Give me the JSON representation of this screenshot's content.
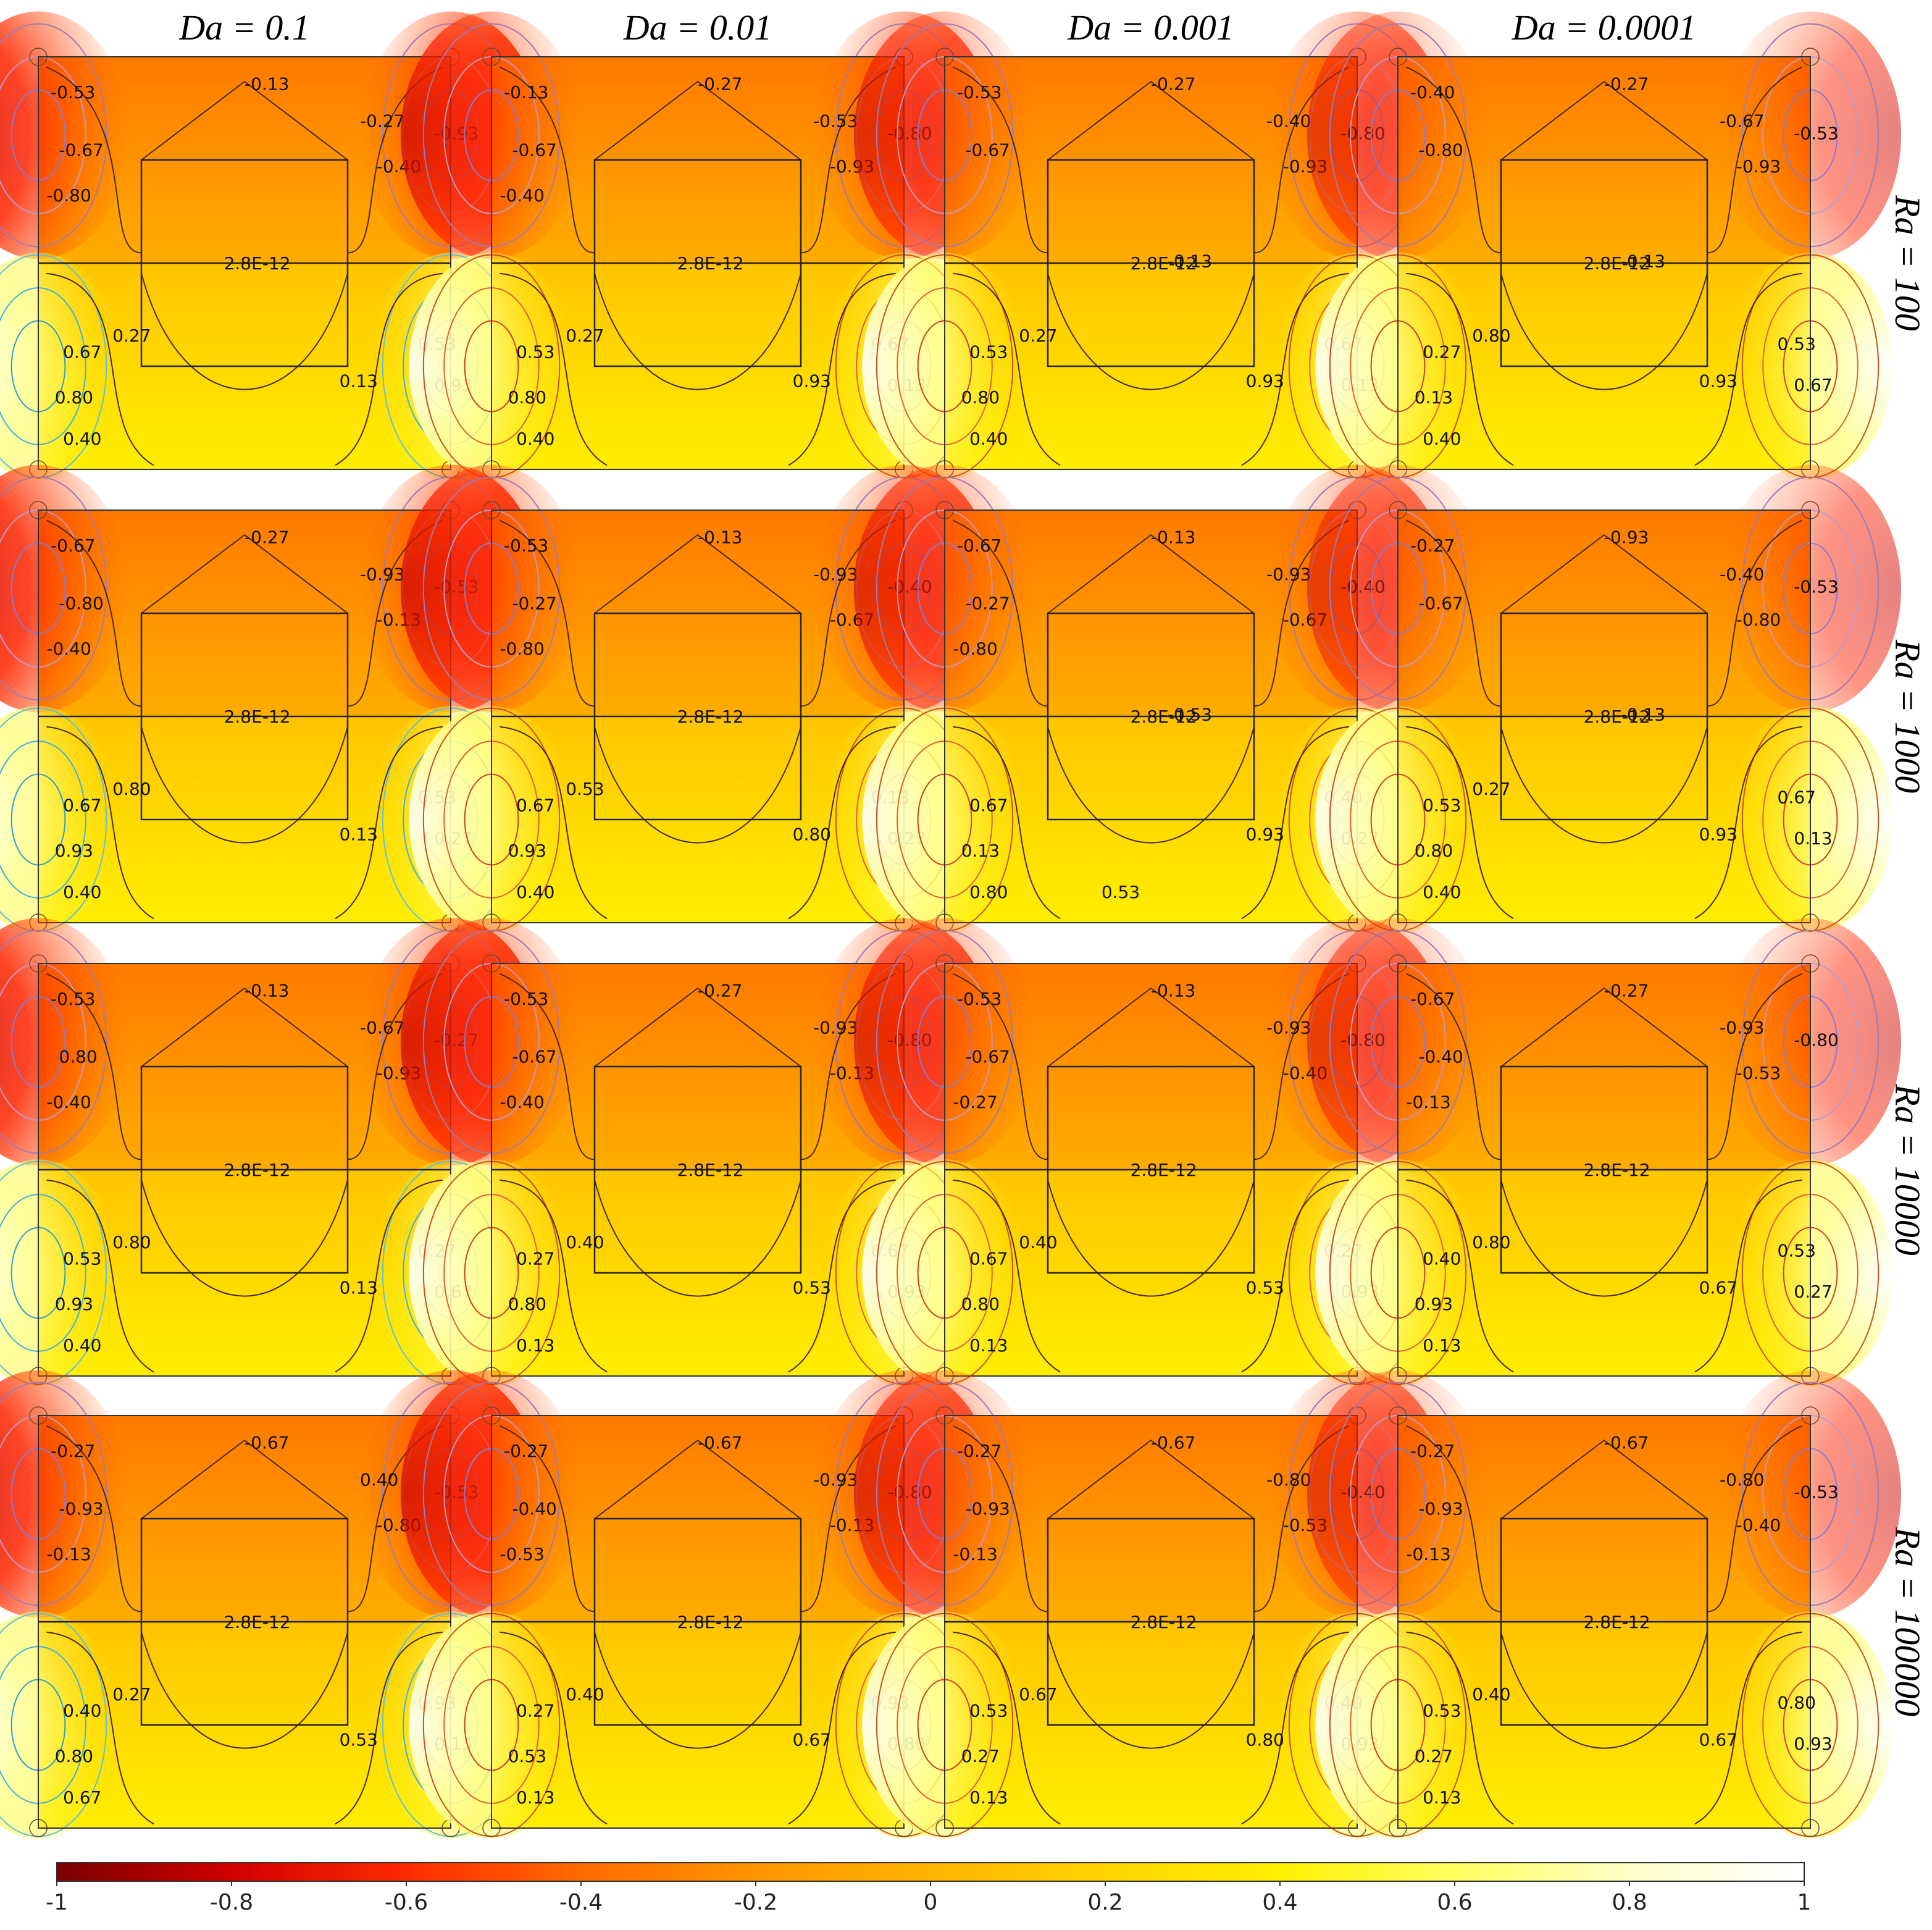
{
  "chart_data": {
    "type": "heatmap",
    "title": "",
    "columns": [
      {
        "key": "da01",
        "label": "Da = 0.1"
      },
      {
        "key": "da001",
        "label": "Da = 0.01"
      },
      {
        "key": "da0001",
        "label": "Da = 0.001"
      },
      {
        "key": "da00001",
        "label": "Da = 0.0001"
      }
    ],
    "rows": [
      {
        "key": "ra100",
        "label": "Ra = 100"
      },
      {
        "key": "ra1000",
        "label": "Ra = 1000"
      },
      {
        "key": "ra10000",
        "label": "Ra = 10000"
      },
      {
        "key": "ra100000",
        "label": "Ra = 100000"
      }
    ],
    "colorbar": {
      "range": [
        -1,
        1
      ],
      "ticks": [
        "-1",
        "-0.8",
        "-0.6",
        "-0.4",
        "-0.2",
        "0",
        "0.2",
        "0.4",
        "0.6",
        "0.8",
        "1"
      ],
      "colormap": [
        "#7a0000",
        "#d10000",
        "#ff2a00",
        "#ff6a00",
        "#ff9500",
        "#ffb400",
        "#ffd400",
        "#fff000",
        "#ffff60",
        "#ffffc8",
        "#ffffff"
      ]
    },
    "panels": [
      {
        "row": 0,
        "col": 0,
        "labels": [
          "-0.53",
          "-0.13",
          "-0.67",
          "-0.27",
          "-0.40",
          "-0.93",
          "-0.80",
          "2.8E-12",
          "0.27",
          "0.67",
          "0.53",
          "0.93",
          "0.80",
          "0.13",
          "0.40"
        ]
      },
      {
        "row": 0,
        "col": 1,
        "labels": [
          "-0.13",
          "-0.27",
          "-0.67",
          "-0.53",
          "-0.93",
          "-0.80",
          "-0.40",
          "2.8E-12",
          "0.27",
          "0.53",
          "0.67",
          "0.13",
          "0.80",
          "0.93",
          "0.40"
        ]
      },
      {
        "row": 0,
        "col": 2,
        "labels": [
          "-0.53",
          "-0.27",
          "-0.67",
          "-0.40",
          "-0.93",
          "-0.80",
          "2.8E-12",
          "-0.13",
          "0.27",
          "0.53",
          "0.67",
          "0.13",
          "0.80",
          "0.93",
          "0.40"
        ]
      },
      {
        "row": 0,
        "col": 3,
        "labels": [
          "-0.40",
          "-0.27",
          "-0.80",
          "-0.67",
          "-0.93",
          "-0.53",
          "2.8E-12",
          "-0.13",
          "0.80",
          "0.27",
          "0.53",
          "0.67",
          "0.13",
          "0.93",
          "0.40"
        ]
      },
      {
        "row": 1,
        "col": 0,
        "labels": [
          "-0.67",
          "-0.27",
          "-0.80",
          "-0.93",
          "-0.13",
          "-0.53",
          "-0.40",
          "2.8E-12",
          "0.80",
          "0.67",
          "0.53",
          "0.27",
          "0.93",
          "0.13",
          "0.40"
        ]
      },
      {
        "row": 1,
        "col": 1,
        "labels": [
          "-0.53",
          "-0.13",
          "-0.27",
          "-0.93",
          "-0.67",
          "-0.40",
          "-0.80",
          "2.8E-12",
          "0.53",
          "0.67",
          "0.13",
          "0.27",
          "0.93",
          "0.80",
          "0.40"
        ]
      },
      {
        "row": 1,
        "col": 2,
        "labels": [
          "-0.67",
          "-0.13",
          "-0.27",
          "-0.93",
          "-0.67",
          "-0.40",
          "-0.80",
          "-0.53",
          "2.8E-12",
          "0.67",
          "0.40",
          "0.27",
          "0.13",
          "0.93",
          "0.80",
          "0.53"
        ]
      },
      {
        "row": 1,
        "col": 3,
        "labels": [
          "-0.27",
          "-0.93",
          "-0.67",
          "-0.40",
          "-0.80",
          "-0.53",
          "2.8E-12",
          "-0.13",
          "0.27",
          "0.53",
          "0.67",
          "0.13",
          "0.80",
          "0.93",
          "0.40"
        ]
      },
      {
        "row": 2,
        "col": 0,
        "labels": [
          "-0.53",
          "-0.13",
          "0.80",
          "-0.67",
          "-0.93",
          "-0.27",
          "-0.40",
          "2.8E-12",
          "0.80",
          "0.53",
          "0.27",
          "0.67",
          "0.93",
          "0.13",
          "0.40"
        ]
      },
      {
        "row": 2,
        "col": 1,
        "labels": [
          "-0.53",
          "-0.27",
          "-0.67",
          "-0.93",
          "-0.13",
          "-0.80",
          "-0.40",
          "2.8E-12",
          "0.40",
          "0.27",
          "0.67",
          "0.93",
          "0.80",
          "0.53",
          "0.13"
        ]
      },
      {
        "row": 2,
        "col": 2,
        "labels": [
          "-0.53",
          "-0.13",
          "-0.67",
          "-0.93",
          "-0.40",
          "-0.80",
          "-0.27",
          "2.8E-12",
          "0.40",
          "0.67",
          "0.27",
          "0.93",
          "0.80",
          "0.53",
          "0.13"
        ]
      },
      {
        "row": 2,
        "col": 3,
        "labels": [
          "-0.67",
          "-0.27",
          "-0.40",
          "-0.93",
          "-0.53",
          "-0.80",
          "-0.13",
          "2.8E-12",
          "0.80",
          "0.40",
          "0.53",
          "0.27",
          "0.93",
          "0.67",
          "0.13"
        ]
      },
      {
        "row": 3,
        "col": 0,
        "labels": [
          "-0.27",
          "-0.67",
          "-0.93",
          "0.40",
          "-0.80",
          "-0.53",
          "-0.13",
          "2.8E-12",
          "0.27",
          "0.40",
          "0.93",
          "0.13",
          "0.80",
          "0.53",
          "0.67"
        ]
      },
      {
        "row": 3,
        "col": 1,
        "labels": [
          "-0.27",
          "-0.67",
          "-0.40",
          "-0.93",
          "-0.13",
          "-0.80",
          "-0.53",
          "2.8E-12",
          "0.40",
          "0.27",
          "0.93",
          "0.80",
          "0.53",
          "0.67",
          "0.13"
        ]
      },
      {
        "row": 3,
        "col": 2,
        "labels": [
          "-0.27",
          "-0.67",
          "-0.93",
          "-0.80",
          "-0.53",
          "-0.40",
          "-0.13",
          "2.8E-12",
          "0.67",
          "0.53",
          "0.40",
          "0.93",
          "0.27",
          "0.80",
          "0.13"
        ]
      },
      {
        "row": 3,
        "col": 3,
        "labels": [
          "-0.27",
          "-0.67",
          "-0.93",
          "-0.80",
          "-0.40",
          "-0.53",
          "-0.13",
          "2.8E-12",
          "0.40",
          "0.53",
          "0.80",
          "0.93",
          "0.27",
          "0.67",
          "0.13"
        ]
      }
    ]
  }
}
